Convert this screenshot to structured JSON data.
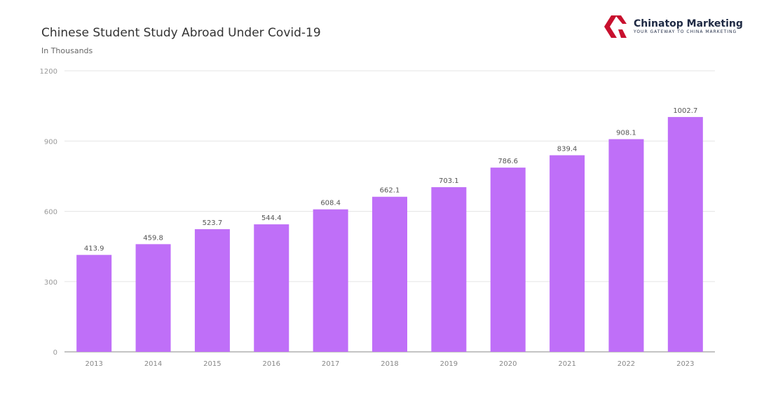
{
  "logo": {
    "name": "Chinatop Marketing",
    "tagline": "YOUR GATEWAY TO CHINA MARKETING",
    "color": "#c8102e"
  },
  "chart_data": {
    "type": "bar",
    "title": "Chinese Student Study Abroad Under Covid-19",
    "subtitle": "In Thousands",
    "categories": [
      "2013",
      "2014",
      "2015",
      "2016",
      "2017",
      "2018",
      "2019",
      "2020",
      "2021",
      "2022",
      "2023"
    ],
    "values": [
      413.9,
      459.8,
      523.7,
      544.4,
      608.4,
      662.1,
      703.1,
      786.6,
      839.4,
      908.1,
      1002.7
    ],
    "yticks": [
      0,
      300,
      600,
      900,
      1200
    ],
    "ylim": [
      0,
      1200
    ],
    "grid": true,
    "bar_color": "#bf6ff8"
  }
}
